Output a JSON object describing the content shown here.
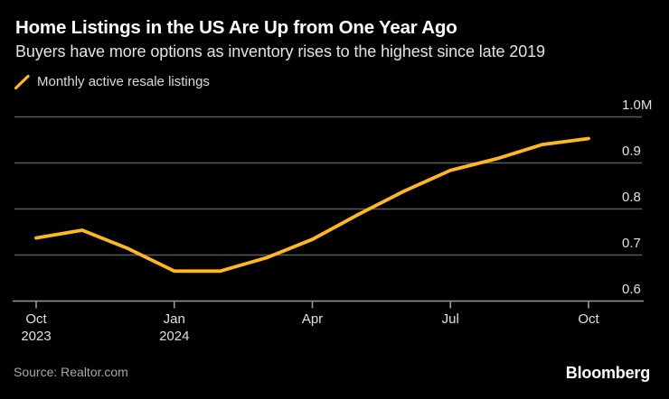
{
  "header": {
    "title": "Home Listings in the US Are Up from One Year Ago",
    "subtitle": "Buyers have more options as inventory rises to the highest since late 2019"
  },
  "legend": {
    "label": "Monthly active resale listings",
    "marker": "yellow-slash-icon"
  },
  "chart_data": {
    "type": "line",
    "title": "Home Listings in the US Are Up from One Year Ago",
    "series": [
      {
        "name": "Monthly active resale listings",
        "values": [
          0.737,
          0.754,
          0.714,
          0.665,
          0.665,
          0.694,
          0.734,
          0.788,
          0.839,
          0.884,
          0.909,
          0.94,
          0.953
        ]
      }
    ],
    "x": [
      "Oct 2023",
      "Nov 2023",
      "Dec 2023",
      "Jan 2024",
      "Feb 2024",
      "Mar 2024",
      "Apr 2024",
      "May 2024",
      "Jun 2024",
      "Jul 2024",
      "Aug 2024",
      "Sep 2024",
      "Oct 2024"
    ],
    "unit": "millions of listings",
    "ylim": [
      0.6,
      1.0
    ],
    "yticks": [
      {
        "value": 1.0,
        "label": "1.0M"
      },
      {
        "value": 0.9,
        "label": "0.9"
      },
      {
        "value": 0.8,
        "label": "0.8"
      },
      {
        "value": 0.7,
        "label": "0.7"
      },
      {
        "value": 0.6,
        "label": "0.6"
      }
    ],
    "xticks": [
      {
        "index": 0,
        "line1": "Oct",
        "line2": "2023"
      },
      {
        "index": 3,
        "line1": "Jan",
        "line2": "2024"
      },
      {
        "index": 6,
        "line1": "Apr",
        "line2": ""
      },
      {
        "index": 9,
        "line1": "Jul",
        "line2": ""
      },
      {
        "index": 12,
        "line1": "Oct",
        "line2": ""
      }
    ],
    "grid": true,
    "legend_position": "top-left",
    "line_color": "#ffb81e"
  },
  "footer": {
    "source": "Source: Realtor.com",
    "brand": "Bloomberg"
  },
  "colors": {
    "background": "#000000",
    "accent_line": "#ffb81e",
    "grid": "#5c5c5c",
    "axis": "#9b9b9b",
    "title": "#ffffff",
    "subtitle": "#e3e3e3",
    "axis_label": "#e0e0e0",
    "source": "#a8a8a8"
  }
}
